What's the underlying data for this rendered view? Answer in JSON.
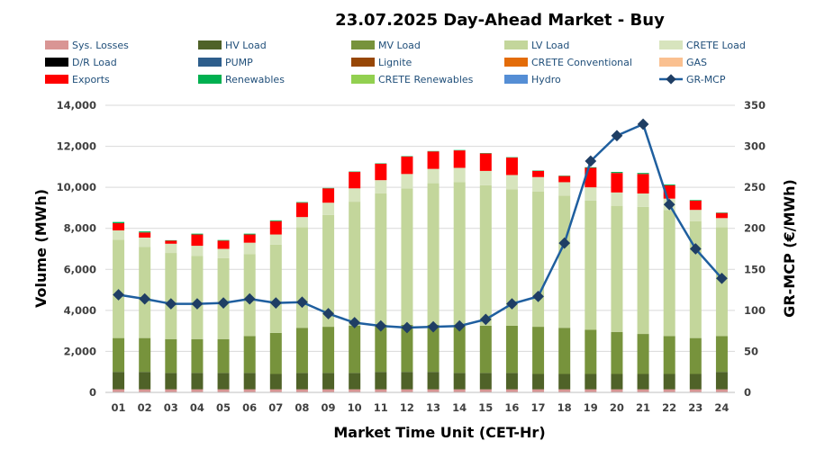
{
  "chart_data": {
    "type": "bar",
    "title": "23.07.2025  Day-Ahead Market - Buy",
    "xlabel": "Market Time Unit (CET-Hr)",
    "ylabel": "Volume (MWh)",
    "y2label": "GR-MCP (€/MWh)",
    "ylim": [
      0,
      14000
    ],
    "y2lim": [
      0,
      350
    ],
    "yticks": [
      "0",
      "2,000",
      "4,000",
      "6,000",
      "8,000",
      "10,000",
      "12,000",
      "14,000"
    ],
    "y2ticks": [
      "0",
      "50",
      "100",
      "150",
      "200",
      "250",
      "300",
      "350"
    ],
    "categories": [
      "01",
      "02",
      "03",
      "04",
      "05",
      "06",
      "07",
      "08",
      "09",
      "10",
      "11",
      "12",
      "13",
      "14",
      "15",
      "16",
      "17",
      "18",
      "19",
      "20",
      "21",
      "22",
      "23",
      "24"
    ],
    "legend": [
      {
        "name": "Sys. Losses",
        "color": "#d99594",
        "kind": "box"
      },
      {
        "name": "HV Load",
        "color": "#4f6228",
        "kind": "box"
      },
      {
        "name": "MV Load",
        "color": "#77933c",
        "kind": "box"
      },
      {
        "name": "LV Load",
        "color": "#c3d69b",
        "kind": "box"
      },
      {
        "name": "CRETE Load",
        "color": "#d7e4bd",
        "kind": "box"
      },
      {
        "name": "D/R Load",
        "color": "#000000",
        "kind": "box"
      },
      {
        "name": "PUMP",
        "color": "#2e5e8c",
        "kind": "box"
      },
      {
        "name": "Lignite",
        "color": "#974706",
        "kind": "box"
      },
      {
        "name": "CRETE Conventional",
        "color": "#e36c09",
        "kind": "box"
      },
      {
        "name": "GAS",
        "color": "#fac090",
        "kind": "box"
      },
      {
        "name": "Exports",
        "color": "#ff0000",
        "kind": "box"
      },
      {
        "name": "Renewables",
        "color": "#00b050",
        "kind": "box"
      },
      {
        "name": "CRETE Renewables",
        "color": "#92d050",
        "kind": "box"
      },
      {
        "name": "Hydro",
        "color": "#558ed5",
        "kind": "box"
      },
      {
        "name": "GR-MCP",
        "color": "#1f5f9f",
        "kind": "line"
      }
    ],
    "series": [
      {
        "name": "Sys. Losses",
        "color": "#d99594",
        "values": [
          150,
          150,
          150,
          150,
          150,
          150,
          150,
          150,
          150,
          150,
          150,
          150,
          150,
          150,
          150,
          150,
          150,
          150,
          150,
          150,
          150,
          150,
          150,
          150
        ]
      },
      {
        "name": "HV Load",
        "color": "#4f6228",
        "values": [
          850,
          850,
          800,
          800,
          800,
          800,
          750,
          800,
          800,
          800,
          850,
          850,
          850,
          800,
          800,
          800,
          750,
          750,
          750,
          750,
          750,
          750,
          750,
          850
        ]
      },
      {
        "name": "MV Load",
        "color": "#77933c",
        "values": [
          1650,
          1650,
          1650,
          1650,
          1650,
          1800,
          2000,
          2200,
          2250,
          2300,
          2300,
          2300,
          2300,
          2300,
          2300,
          2300,
          2300,
          2250,
          2150,
          2050,
          1950,
          1850,
          1750,
          1750
        ]
      },
      {
        "name": "LV Load",
        "color": "#c3d69b",
        "values": [
          4800,
          4450,
          4200,
          4050,
          3950,
          4000,
          4300,
          4900,
          5450,
          6050,
          6400,
          6650,
          6900,
          7000,
          6850,
          6650,
          6600,
          6450,
          6300,
          6150,
          6200,
          6150,
          5700,
          5300
        ]
      },
      {
        "name": "CRETE Load",
        "color": "#d7e4bd",
        "values": [
          450,
          450,
          450,
          500,
          450,
          550,
          500,
          500,
          600,
          650,
          650,
          700,
          700,
          700,
          700,
          700,
          700,
          650,
          650,
          650,
          650,
          550,
          550,
          450
        ]
      },
      {
        "name": "Exports",
        "color": "#ff0000",
        "values": [
          350,
          250,
          150,
          550,
          400,
          400,
          650,
          700,
          700,
          800,
          800,
          850,
          850,
          850,
          850,
          850,
          300,
          300,
          950,
          950,
          950,
          650,
          450,
          250
        ]
      },
      {
        "name": "Renewables",
        "color": "#00b050",
        "values": [
          60,
          50,
          20,
          40,
          30,
          40,
          40,
          30,
          20,
          20,
          20,
          20,
          20,
          20,
          20,
          20,
          20,
          20,
          30,
          50,
          50,
          40,
          30,
          20
        ]
      }
    ],
    "line": {
      "name": "GR-MCP",
      "color": "#1f5f9f",
      "values": [
        119,
        114,
        108,
        108,
        109,
        114,
        109,
        110,
        96,
        85,
        81,
        79,
        80,
        81,
        89,
        108,
        117,
        182,
        282,
        313,
        327,
        229,
        175,
        139
      ]
    }
  }
}
